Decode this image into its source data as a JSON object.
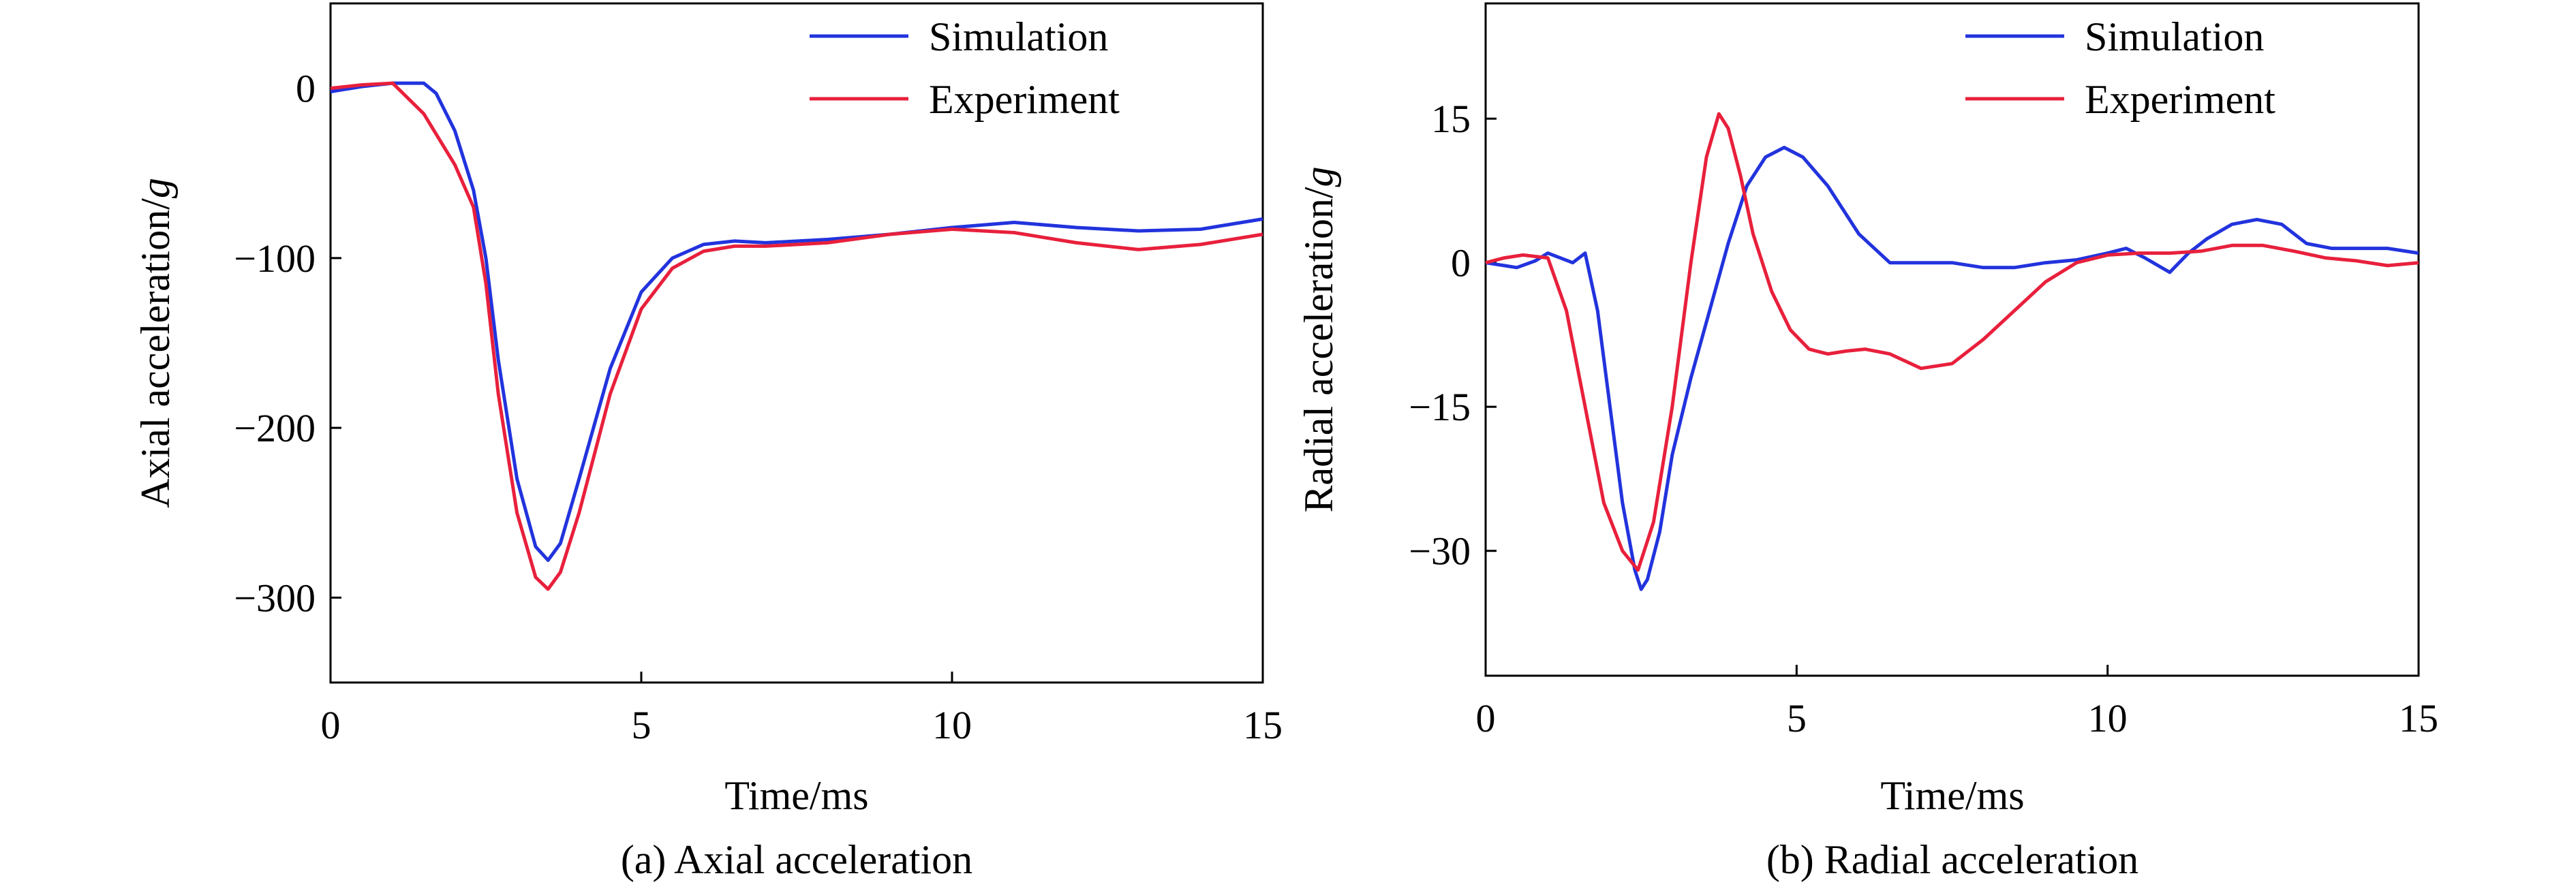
{
  "chart_data": [
    {
      "type": "line",
      "caption": "(a) Axial acceleration",
      "xlabel": "Time/ms",
      "ylabel": "Axial acceleration/",
      "ylabel_unit": "g",
      "xlim": [
        0,
        15
      ],
      "ylim": [
        -350,
        50
      ],
      "xticks": [
        0,
        5,
        10,
        15
      ],
      "yticks": [
        0,
        -100,
        -200,
        -300
      ],
      "ytick_labels": [
        "0",
        "−100",
        "−200",
        "−300"
      ],
      "grid": false,
      "legend_position": "top-right",
      "series": [
        {
          "name": "Simulation",
          "color": "#2233dd",
          "x": [
            0,
            0.5,
            1.0,
            1.5,
            1.7,
            2.0,
            2.3,
            2.5,
            2.7,
            3.0,
            3.3,
            3.5,
            3.7,
            4.0,
            4.5,
            5.0,
            5.5,
            6.0,
            6.5,
            7.0,
            8.0,
            9.0,
            10.0,
            11.0,
            12.0,
            13.0,
            14.0,
            15.0
          ],
          "y": [
            -2,
            1,
            3,
            3,
            -3,
            -25,
            -60,
            -100,
            -160,
            -230,
            -270,
            -278,
            -268,
            -230,
            -165,
            -120,
            -100,
            -92,
            -90,
            -91,
            -89,
            -86,
            -82,
            -79,
            -82,
            -84,
            -83,
            -77
          ]
        },
        {
          "name": "Experiment",
          "color": "#e8203c",
          "x": [
            0,
            0.5,
            1.0,
            1.5,
            2.0,
            2.3,
            2.5,
            2.7,
            3.0,
            3.3,
            3.5,
            3.7,
            4.0,
            4.5,
            5.0,
            5.5,
            6.0,
            6.5,
            7.0,
            8.0,
            9.0,
            10.0,
            11.0,
            12.0,
            13.0,
            14.0,
            15.0
          ],
          "y": [
            0,
            2,
            3,
            -15,
            -45,
            -70,
            -115,
            -180,
            -250,
            -288,
            -295,
            -285,
            -250,
            -180,
            -130,
            -106,
            -96,
            -93,
            -93,
            -91,
            -86,
            -83,
            -85,
            -91,
            -95,
            -92,
            -86
          ]
        }
      ]
    },
    {
      "type": "line",
      "caption": "(b) Radial acceleration",
      "xlabel": "Time/ms",
      "ylabel": "Radial acceleration/",
      "ylabel_unit": "g",
      "xlim": [
        0,
        15
      ],
      "ylim": [
        -43,
        27
      ],
      "xticks": [
        0,
        5,
        10,
        15
      ],
      "yticks": [
        15,
        0,
        -15,
        -30
      ],
      "ytick_labels": [
        "15",
        "0",
        "−15",
        "−30"
      ],
      "grid": false,
      "legend_position": "top-right",
      "series": [
        {
          "name": "Simulation",
          "color": "#2233dd",
          "x": [
            0,
            0.3,
            0.5,
            0.8,
            1.0,
            1.2,
            1.4,
            1.6,
            1.8,
            2.0,
            2.2,
            2.4,
            2.5,
            2.6,
            2.8,
            3.0,
            3.3,
            3.6,
            3.9,
            4.2,
            4.5,
            4.8,
            5.1,
            5.5,
            6.0,
            6.5,
            7.0,
            7.5,
            8.0,
            8.5,
            9.0,
            9.5,
            10.0,
            10.3,
            10.6,
            11.0,
            11.3,
            11.6,
            12.0,
            12.4,
            12.8,
            13.2,
            13.6,
            14.0,
            14.5,
            15.0
          ],
          "y": [
            0,
            -0.3,
            -0.5,
            0.2,
            1,
            0.5,
            0,
            1,
            -5,
            -15,
            -25,
            -32,
            -34,
            -33,
            -28,
            -20,
            -12,
            -5,
            2,
            8,
            11,
            12,
            11,
            8,
            3,
            0,
            0,
            0,
            -0.5,
            -0.5,
            0,
            0.3,
            1,
            1.5,
            0.5,
            -1,
            1,
            2.5,
            4,
            4.5,
            4,
            2,
            1.5,
            1.5,
            1.5,
            1
          ]
        },
        {
          "name": "Experiment",
          "color": "#e8203c",
          "x": [
            0,
            0.3,
            0.6,
            1.0,
            1.3,
            1.6,
            1.9,
            2.2,
            2.45,
            2.7,
            3.0,
            3.3,
            3.55,
            3.75,
            3.9,
            4.1,
            4.3,
            4.6,
            4.9,
            5.2,
            5.5,
            5.8,
            6.1,
            6.5,
            7.0,
            7.5,
            8.0,
            8.5,
            9.0,
            9.5,
            10.0,
            10.5,
            11.0,
            11.5,
            12.0,
            12.5,
            13.0,
            13.5,
            14.0,
            14.5,
            15.0
          ],
          "y": [
            0,
            0.5,
            0.8,
            0.5,
            -5,
            -15,
            -25,
            -30,
            -32,
            -27,
            -15,
            0,
            11,
            15.5,
            14,
            9,
            3,
            -3,
            -7,
            -9,
            -9.5,
            -9.2,
            -9,
            -9.5,
            -11,
            -10.5,
            -8,
            -5,
            -2,
            0,
            0.8,
            1,
            1,
            1.2,
            1.8,
            1.8,
            1.2,
            0.5,
            0.2,
            -0.3,
            0
          ]
        }
      ]
    }
  ]
}
